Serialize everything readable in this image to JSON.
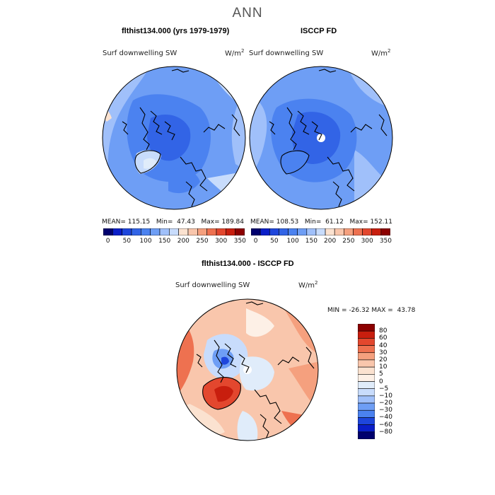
{
  "figure_title": "ANN",
  "chart_data": [
    {
      "type": "heatmap",
      "title": "flthist134.000 (yrs 1979-1979)",
      "subtitle": "Surf downwelling SW",
      "units": "W/m",
      "units_exp": "2",
      "projection": "north polar stereographic",
      "stats": {
        "mean_label": "MEAN=",
        "mean": "115.15",
        "min_label": "Min=",
        "min": "47.43",
        "max_label": "Max=",
        "max": "189.84"
      },
      "colorbar": {
        "colors": [
          "#00006e",
          "#0a1ec8",
          "#1e46dc",
          "#3264e6",
          "#4b82f0",
          "#6e9ef5",
          "#a0c0fa",
          "#c8dcfc",
          "#fbe2d0",
          "#f9c6ac",
          "#f5a07e",
          "#ee7150",
          "#e3472e",
          "#c81e0e",
          "#8c0000"
        ],
        "tick_labels": [
          "0",
          "50",
          "100",
          "150",
          "200",
          "250",
          "300",
          "350"
        ],
        "range": [
          0,
          350
        ]
      }
    },
    {
      "type": "heatmap",
      "title": "ISCCP FD",
      "subtitle": "Surf downwelling SW",
      "units": "W/m",
      "units_exp": "2",
      "projection": "north polar stereographic",
      "stats": {
        "mean_label": "MEAN=",
        "mean": "108.53",
        "min_label": "Min=",
        "min": "61.12",
        "max_label": "Max=",
        "max": "152.11"
      },
      "colorbar": {
        "colors": [
          "#00006e",
          "#0a1ec8",
          "#1e46dc",
          "#3264e6",
          "#4b82f0",
          "#6e9ef5",
          "#a0c0fa",
          "#c8dcfc",
          "#fbe2d0",
          "#f9c6ac",
          "#f5a07e",
          "#ee7150",
          "#e3472e",
          "#c81e0e",
          "#8c0000"
        ],
        "tick_labels": [
          "0",
          "50",
          "100",
          "150",
          "200",
          "250",
          "300",
          "350"
        ],
        "range": [
          0,
          350
        ]
      }
    },
    {
      "type": "heatmap",
      "title": "flthist134.000 - ISCCP FD",
      "subtitle": "Surf downwelling SW",
      "units": "W/m",
      "units_exp": "2",
      "projection": "north polar stereographic",
      "stats": {
        "min_label": "MIN =",
        "min": "-26.32",
        "max_label": "MAX =",
        "max": "43.78"
      },
      "colorbar": {
        "orientation": "vertical",
        "levels": [
          "80",
          "60",
          "40",
          "30",
          "20",
          "10",
          "5",
          "0",
          "-5",
          "-10",
          "-20",
          "-30",
          "-40",
          "-60",
          "-80"
        ],
        "tick_labels": [
          "80",
          "60",
          "40",
          "30",
          "20",
          "10",
          "5",
          "0",
          "−5",
          "−10",
          "−20",
          "−30",
          "−40",
          "−60",
          "−80"
        ],
        "colors": [
          "#8c0000",
          "#c81e0e",
          "#e3472e",
          "#ee7150",
          "#f5a07e",
          "#f9c6ac",
          "#fbe2d0",
          "#fdf0e6",
          "#e0ecfa",
          "#c8dcfc",
          "#a0c0fa",
          "#6e9ef5",
          "#4b82f0",
          "#1e46dc",
          "#0a1ec8",
          "#00006e"
        ]
      }
    }
  ]
}
